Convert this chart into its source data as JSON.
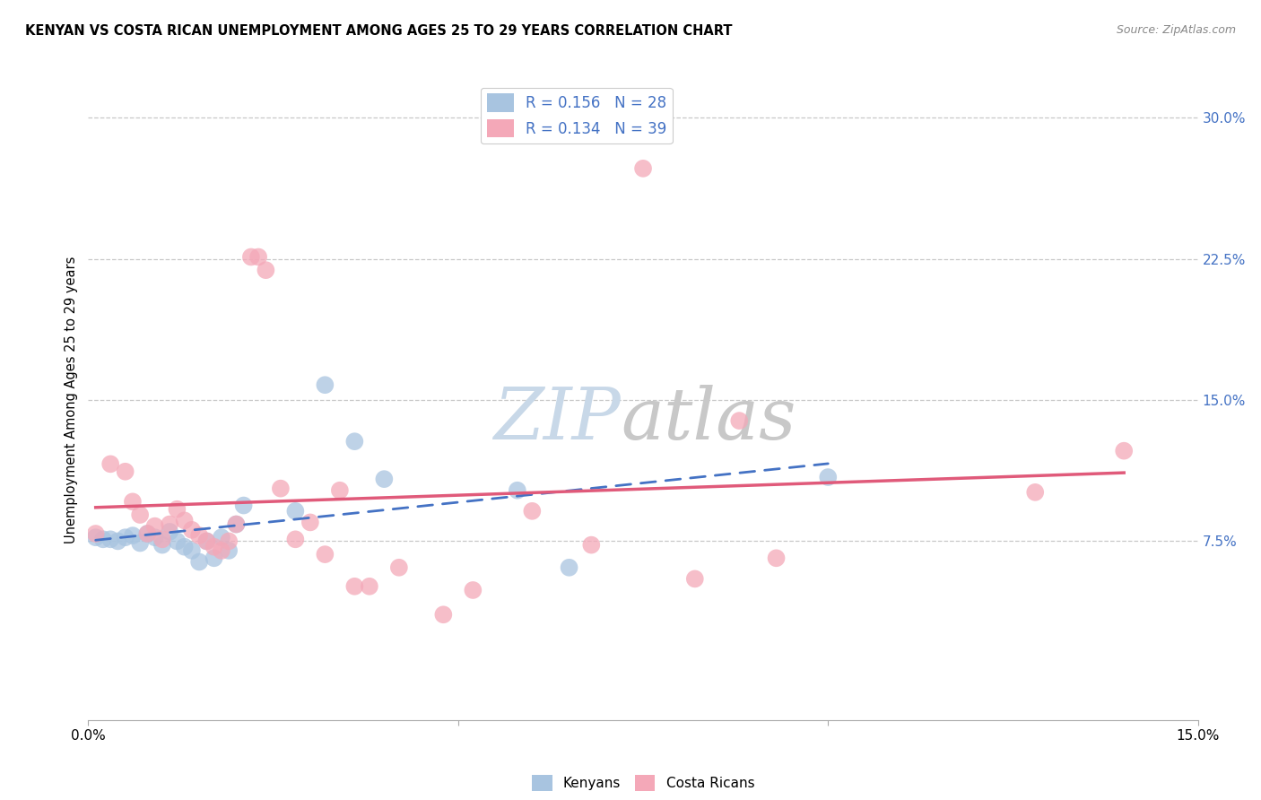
{
  "title": "KENYAN VS COSTA RICAN UNEMPLOYMENT AMONG AGES 25 TO 29 YEARS CORRELATION CHART",
  "source": "Source: ZipAtlas.com",
  "ylabel": "Unemployment Among Ages 25 to 29 years",
  "xlim": [
    0.0,
    0.15
  ],
  "ylim": [
    -0.02,
    0.32
  ],
  "yticks_right": [
    0.075,
    0.15,
    0.225,
    0.3
  ],
  "yticklabels_right": [
    "7.5%",
    "15.0%",
    "22.5%",
    "30.0%"
  ],
  "grid_color": "#c8c8c8",
  "background_color": "#ffffff",
  "kenyan_color": "#a8c4e0",
  "costa_rican_color": "#f4a8b8",
  "kenyan_line_color": "#4472c4",
  "costa_rican_line_color": "#e05a7a",
  "legend_R_N_color": "#4472c4",
  "R_kenya": 0.156,
  "N_kenya": 28,
  "R_costa": 0.134,
  "N_costa": 39,
  "watermark_zip": "ZIP",
  "watermark_atlas": "atlas",
  "watermark_color_zip": "#c8d8e8",
  "watermark_color_atlas": "#c8c8c8",
  "kenyan_x": [
    0.001,
    0.002,
    0.003,
    0.004,
    0.005,
    0.006,
    0.007,
    0.008,
    0.009,
    0.01,
    0.011,
    0.012,
    0.013,
    0.014,
    0.015,
    0.016,
    0.017,
    0.018,
    0.019,
    0.02,
    0.021,
    0.028,
    0.032,
    0.036,
    0.04,
    0.058,
    0.065,
    0.1
  ],
  "kenyan_y": [
    0.077,
    0.076,
    0.076,
    0.075,
    0.077,
    0.078,
    0.074,
    0.079,
    0.077,
    0.073,
    0.08,
    0.075,
    0.072,
    0.07,
    0.064,
    0.075,
    0.066,
    0.077,
    0.07,
    0.084,
    0.094,
    0.091,
    0.158,
    0.128,
    0.108,
    0.102,
    0.061,
    0.109
  ],
  "costa_x": [
    0.001,
    0.003,
    0.005,
    0.006,
    0.007,
    0.008,
    0.009,
    0.01,
    0.011,
    0.012,
    0.013,
    0.014,
    0.015,
    0.016,
    0.017,
    0.018,
    0.019,
    0.02,
    0.022,
    0.023,
    0.024,
    0.026,
    0.028,
    0.03,
    0.032,
    0.034,
    0.036,
    0.038,
    0.042,
    0.048,
    0.052,
    0.06,
    0.068,
    0.075,
    0.082,
    0.088,
    0.093,
    0.128,
    0.14
  ],
  "costa_y": [
    0.079,
    0.116,
    0.112,
    0.096,
    0.089,
    0.079,
    0.083,
    0.076,
    0.084,
    0.092,
    0.086,
    0.081,
    0.078,
    0.075,
    0.072,
    0.07,
    0.075,
    0.084,
    0.226,
    0.226,
    0.219,
    0.103,
    0.076,
    0.085,
    0.068,
    0.102,
    0.051,
    0.051,
    0.061,
    0.036,
    0.049,
    0.091,
    0.073,
    0.273,
    0.055,
    0.139,
    0.066,
    0.101,
    0.123
  ]
}
